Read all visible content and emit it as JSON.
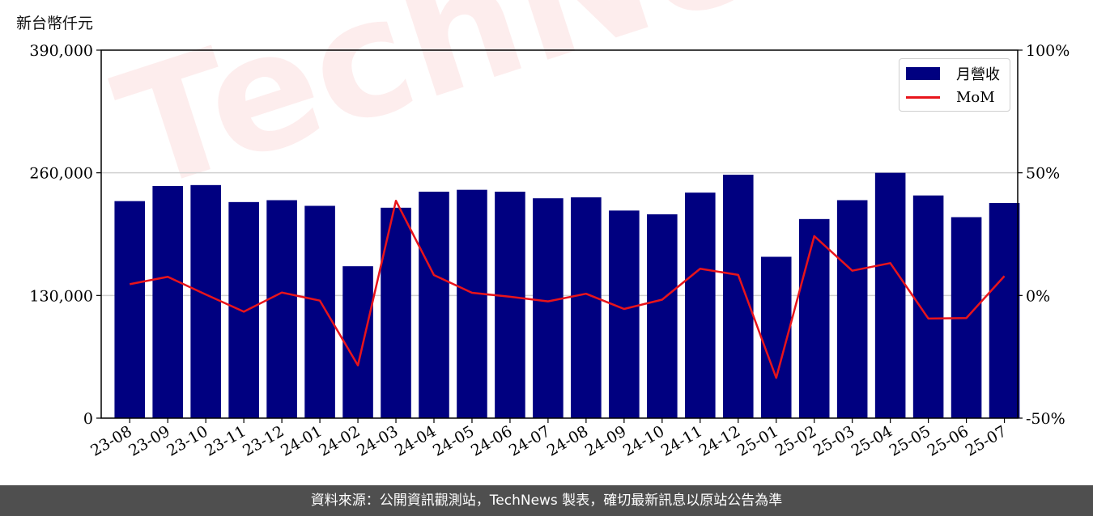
{
  "unit_label": "新台幣仟元",
  "footer_text": "資料來源：公開資訊觀測站，TechNews 製表，確切最新訊息以原站公告為準",
  "watermark": "TechNews",
  "colors": {
    "bar": "#000080",
    "line": "#e8141b",
    "footer_bg": "#4f4f4f"
  },
  "chart_data": {
    "type": "bar",
    "title": "",
    "categories": [
      "23-08",
      "23-09",
      "23-10",
      "23-11",
      "23-12",
      "24-01",
      "24-02",
      "24-03",
      "24-04",
      "24-05",
      "24-06",
      "24-07",
      "24-08",
      "24-09",
      "24-10",
      "24-11",
      "24-12",
      "25-01",
      "25-02",
      "25-03",
      "25-04",
      "25-05",
      "25-06",
      "25-07"
    ],
    "series": [
      {
        "name": "月營收",
        "type": "bar",
        "axis": "left",
        "values": [
          230000,
          246000,
          247000,
          229000,
          231000,
          225000,
          161000,
          223000,
          240000,
          242000,
          240000,
          233000,
          234000,
          220000,
          216000,
          239000,
          258000,
          171000,
          211000,
          231000,
          260000,
          236000,
          213000,
          228000
        ]
      },
      {
        "name": "MoM",
        "type": "line",
        "axis": "right",
        "values": [
          4.6,
          7.6,
          0.4,
          -6.6,
          1.2,
          -2.1,
          -28.5,
          38.6,
          8.3,
          1.1,
          -0.5,
          -2.4,
          0.7,
          -5.5,
          -1.7,
          10.9,
          8.4,
          -33.6,
          24.2,
          10.1,
          13.2,
          -9.4,
          -9.2,
          7.9
        ]
      }
    ],
    "y_left": {
      "ylim": [
        0,
        390000
      ],
      "ticks": [
        "0",
        "130,000",
        "260,000",
        "390,000"
      ],
      "tick_values": [
        0,
        130000,
        260000,
        390000
      ]
    },
    "y_right": {
      "ylim": [
        -50,
        100
      ],
      "ticks": [
        "-50%",
        "0%",
        "50%",
        "100%"
      ],
      "tick_values": [
        -50,
        0,
        50,
        100
      ]
    },
    "grid": "horizontal",
    "legend": "top-right",
    "legend_entries": [
      "月營收",
      "MoM"
    ]
  }
}
